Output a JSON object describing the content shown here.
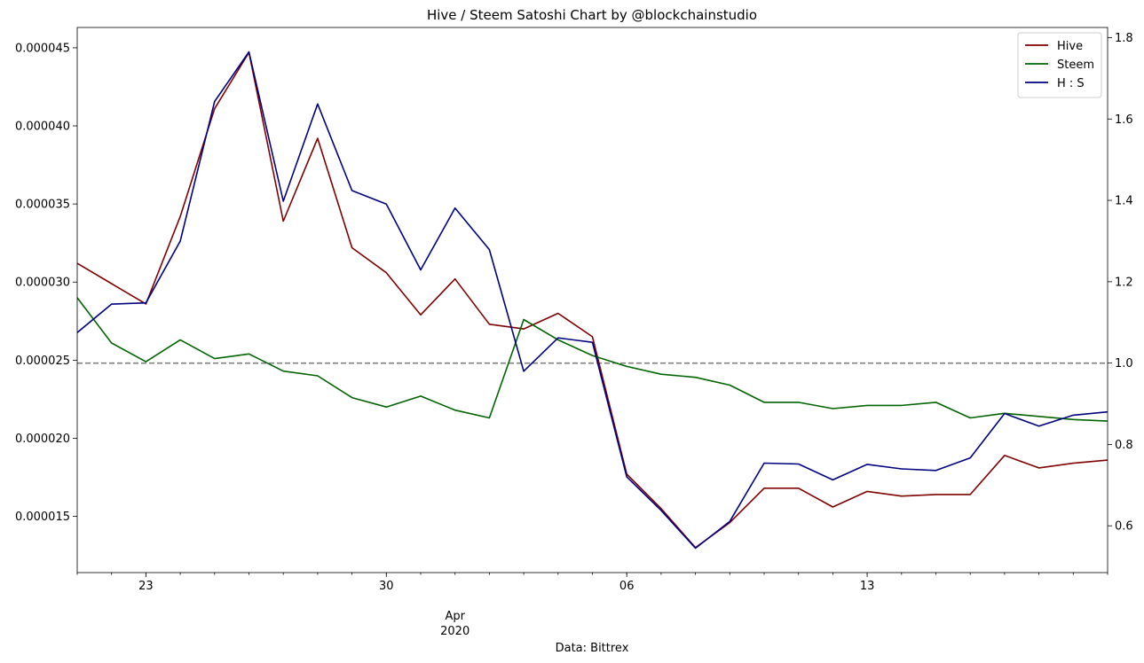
{
  "chart_data": {
    "type": "line",
    "title": "Hive / Steem Satoshi Chart by @blockchainstudio",
    "xlabel": "Data: Bittrex",
    "x": [
      "2020-03-21",
      "2020-03-22",
      "2020-03-23",
      "2020-03-24",
      "2020-03-25",
      "2020-03-26",
      "2020-03-27",
      "2020-03-28",
      "2020-03-29",
      "2020-03-30",
      "2020-03-31",
      "2020-04-01",
      "2020-04-02",
      "2020-04-03",
      "2020-04-04",
      "2020-04-05",
      "2020-04-06",
      "2020-04-07",
      "2020-04-08",
      "2020-04-09",
      "2020-04-10",
      "2020-04-11",
      "2020-04-12",
      "2020-04-13",
      "2020-04-14",
      "2020-04-15",
      "2020-04-16",
      "2020-04-17",
      "2020-04-18",
      "2020-04-19",
      "2020-04-20"
    ],
    "x_ticks": [
      {
        "date": "2020-03-23",
        "label": "23",
        "sub": "",
        "sub2": ""
      },
      {
        "date": "2020-03-30",
        "label": "30",
        "sub": "",
        "sub2": ""
      },
      {
        "date": "2020-04-01",
        "label": "",
        "sub": "Apr",
        "sub2": "2020"
      },
      {
        "date": "2020-04-06",
        "label": "06",
        "sub": "",
        "sub2": ""
      },
      {
        "date": "2020-04-13",
        "label": "13",
        "sub": "",
        "sub2": ""
      }
    ],
    "y_left": {
      "ylim": [
        1.14e-05,
        4.63e-05
      ],
      "ticks": [
        1.5e-05,
        2e-05,
        2.5e-05,
        3e-05,
        3.5e-05,
        4e-05,
        4.5e-05
      ],
      "tick_labels": [
        "0.000015",
        "0.000020",
        "0.000025",
        "0.000030",
        "0.000035",
        "0.000040",
        "0.000045"
      ]
    },
    "y_right": {
      "ylim": [
        0.485,
        1.825
      ],
      "ticks": [
        0.6,
        0.8,
        1.0,
        1.2,
        1.4,
        1.6,
        1.8
      ],
      "tick_labels": [
        "0.6",
        "0.8",
        "1.0",
        "1.2",
        "1.4",
        "1.6",
        "1.8"
      ]
    },
    "reference_line": {
      "axis": "right",
      "value": 1.0,
      "color": "#808080",
      "style": "dashed"
    },
    "series": [
      {
        "name": "Hive",
        "axis": "left",
        "color": "#800000",
        "values": [
          3.12e-05,
          2.99e-05,
          2.86e-05,
          3.42e-05,
          4.11e-05,
          4.47e-05,
          3.39e-05,
          3.92e-05,
          3.22e-05,
          3.06e-05,
          2.79e-05,
          3.02e-05,
          2.73e-05,
          2.7e-05,
          2.8e-05,
          2.65e-05,
          1.77e-05,
          1.55e-05,
          1.3e-05,
          1.46e-05,
          1.68e-05,
          1.68e-05,
          1.56e-05,
          1.66e-05,
          1.63e-05,
          1.64e-05,
          1.64e-05,
          1.89e-05,
          1.81e-05,
          1.84e-05,
          1.86e-05
        ]
      },
      {
        "name": "Steem",
        "axis": "left",
        "color": "#006400",
        "values": [
          2.9e-05,
          2.61e-05,
          2.49e-05,
          2.63e-05,
          2.51e-05,
          2.54e-05,
          2.43e-05,
          2.4e-05,
          2.26e-05,
          2.2e-05,
          2.27e-05,
          2.18e-05,
          2.13e-05,
          2.76e-05,
          2.63e-05,
          2.53e-05,
          2.46e-05,
          2.41e-05,
          2.39e-05,
          2.34e-05,
          2.23e-05,
          2.23e-05,
          2.19e-05,
          2.21e-05,
          2.21e-05,
          2.23e-05,
          2.13e-05,
          2.16e-05,
          2.14e-05,
          2.12e-05,
          2.11e-05
        ]
      },
      {
        "name": "H : S",
        "axis": "right",
        "color": "#000080",
        "values": [
          1.075,
          1.145,
          1.148,
          1.3,
          1.643,
          1.765,
          1.398,
          1.637,
          1.424,
          1.391,
          1.229,
          1.381,
          1.279,
          0.98,
          1.062,
          1.051,
          0.72,
          0.638,
          0.545,
          0.611,
          0.754,
          0.752,
          0.713,
          0.751,
          0.74,
          0.736,
          0.767,
          0.876,
          0.845,
          0.872,
          0.88
        ]
      }
    ],
    "legend": {
      "placement": "top-right"
    },
    "grid": false
  }
}
